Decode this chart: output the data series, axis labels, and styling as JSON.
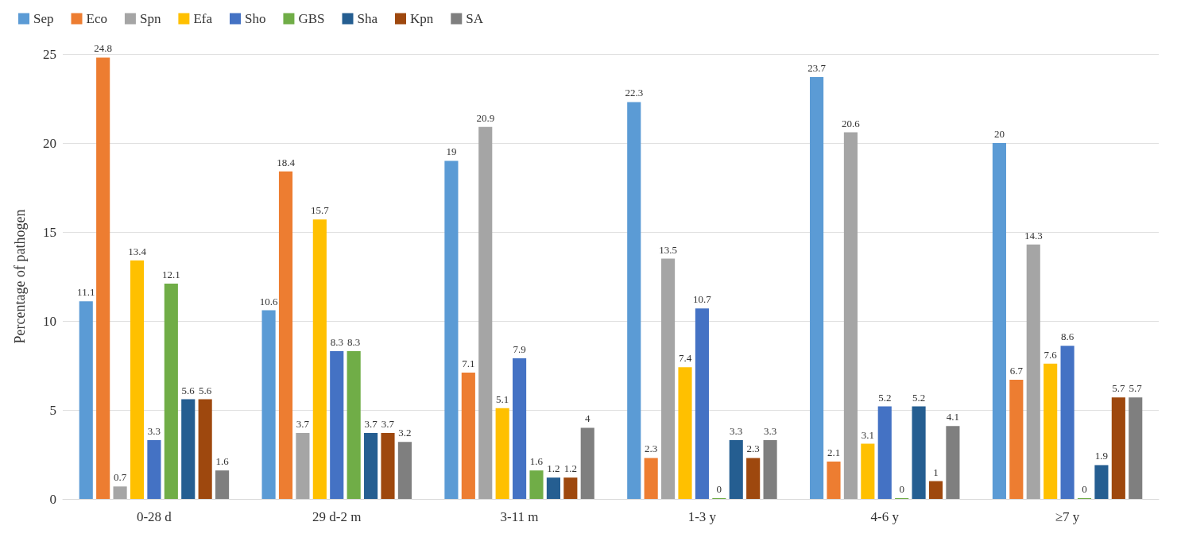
{
  "chart_data": {
    "type": "bar",
    "ylabel": "Percentage of pathogen",
    "categories": [
      "0-28 d",
      "29 d-2 m",
      "3-11 m",
      "1-3 y",
      "4-6 y",
      "≥7 y"
    ],
    "series": [
      {
        "name": "Sep",
        "color": "#5b9bd5",
        "values": [
          11.1,
          10.6,
          19,
          22.3,
          23.7,
          20
        ]
      },
      {
        "name": "Eco",
        "color": "#ed7d31",
        "values": [
          24.8,
          18.4,
          7.1,
          2.3,
          2.1,
          6.7
        ]
      },
      {
        "name": "Spn",
        "color": "#a5a5a5",
        "values": [
          0.7,
          3.7,
          20.9,
          13.5,
          20.6,
          14.3
        ]
      },
      {
        "name": "Efa",
        "color": "#ffc000",
        "values": [
          13.4,
          15.7,
          5.1,
          7.4,
          3.1,
          7.6
        ]
      },
      {
        "name": "Sho",
        "color": "#4472c4",
        "values": [
          3.3,
          8.3,
          7.9,
          10.7,
          5.2,
          8.6
        ]
      },
      {
        "name": "GBS",
        "color": "#70ad47",
        "values": [
          12.1,
          8.3,
          1.6,
          0,
          0,
          0
        ]
      },
      {
        "name": "Sha",
        "color": "#255e91",
        "values": [
          5.6,
          3.7,
          1.2,
          3.3,
          5.2,
          1.9
        ]
      },
      {
        "name": "Kpn",
        "color": "#9e480e",
        "values": [
          5.6,
          3.7,
          1.2,
          2.3,
          1,
          5.7
        ]
      },
      {
        "name": "SA",
        "color": "#7f7f7f",
        "values": [
          1.6,
          3.2,
          4,
          3.3,
          4.1,
          5.7
        ]
      }
    ],
    "ylim": [
      0,
      25
    ],
    "yticks": [
      0,
      5,
      10,
      15,
      20,
      25
    ],
    "grid": "y",
    "legend": "top left",
    "data_labels": true
  }
}
